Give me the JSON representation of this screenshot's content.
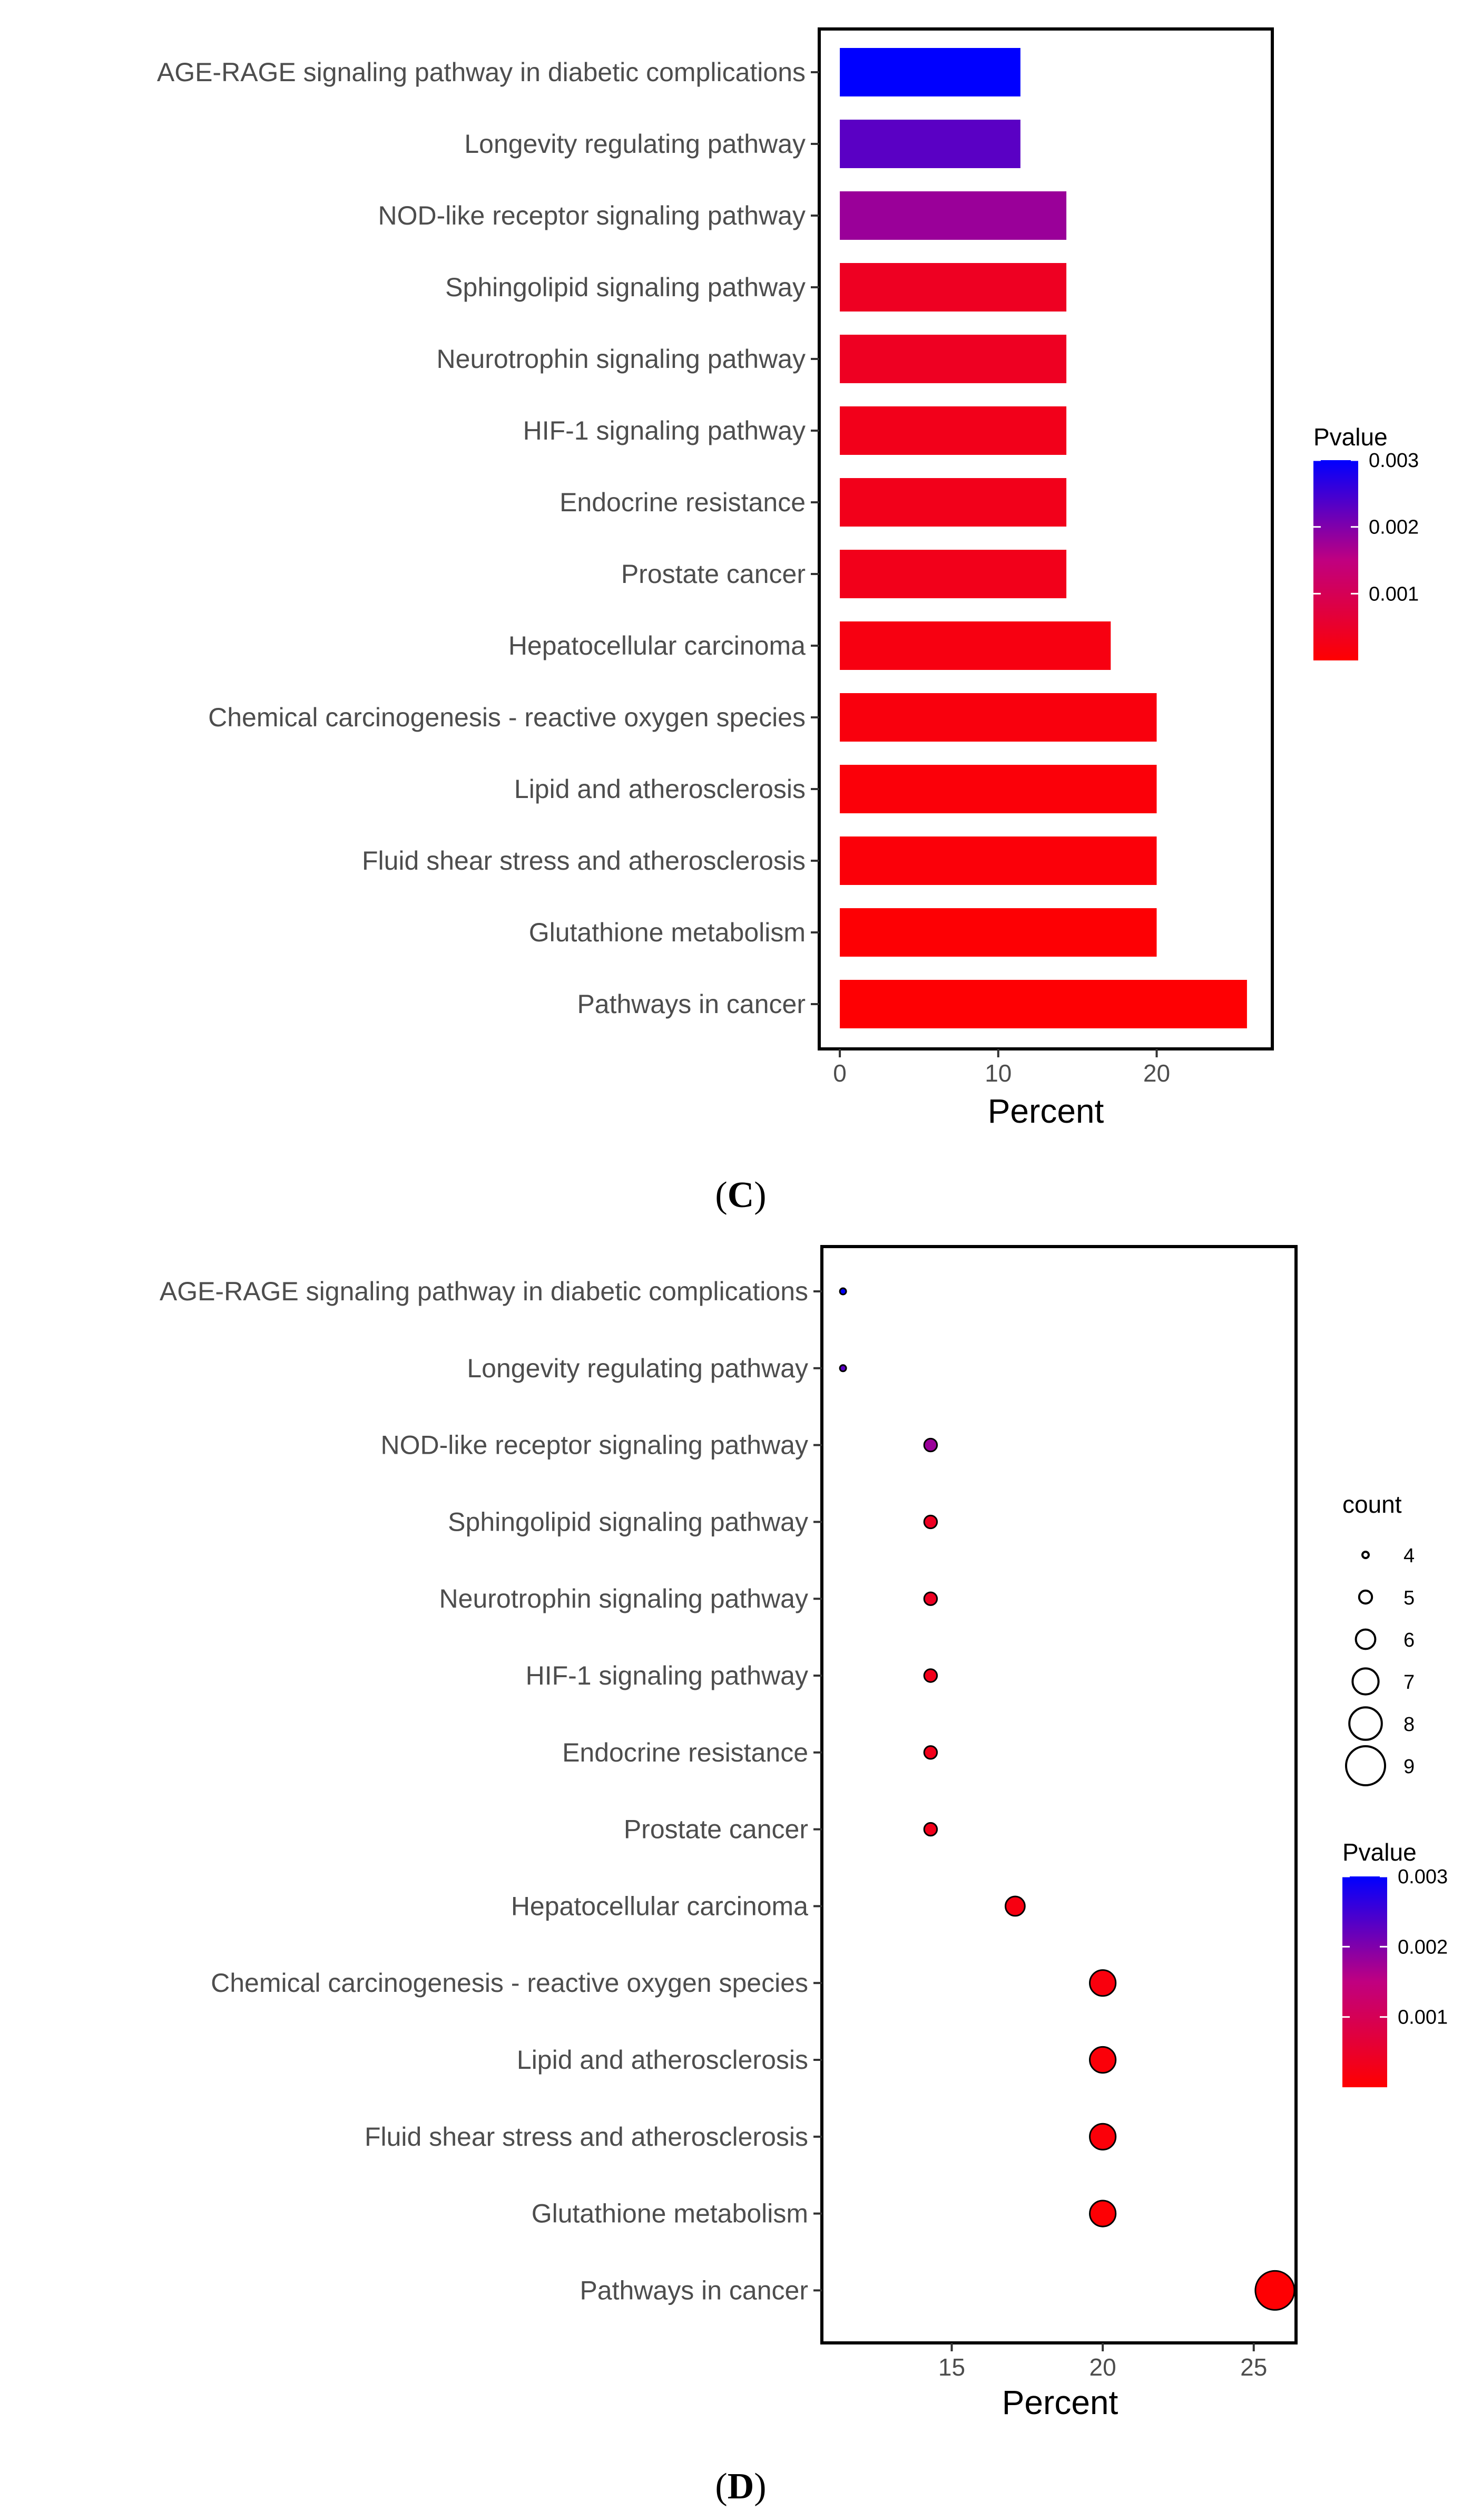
{
  "colors": {
    "low": "#ff0000",
    "high": "#0000ff",
    "mid": "#a020a0"
  },
  "chart_data": [
    {
      "type": "bar",
      "panel": "C",
      "orientation": "horizontal",
      "xlabel": "Percent",
      "xlim": [
        -1.3,
        27.3
      ],
      "xticks": [
        0,
        10,
        20
      ],
      "categories": [
        "AGE-RAGE signaling pathway in diabetic complications",
        "Longevity regulating pathway",
        "NOD-like receptor signaling pathway",
        "Sphingolipid signaling pathway",
        "Neurotrophin signaling pathway",
        "HIF-1 signaling pathway",
        "Endocrine resistance",
        "Prostate cancer",
        "Hepatocellular carcinoma",
        "Chemical carcinogenesis - reactive oxygen species",
        "Lipid and atherosclerosis",
        "Fluid shear stress and atherosclerosis",
        "Glutathione metabolism",
        "Pathways in cancer"
      ],
      "values": [
        11.4,
        11.4,
        14.3,
        14.3,
        14.3,
        14.3,
        14.3,
        14.3,
        17.1,
        20.0,
        20.0,
        20.0,
        20.0,
        25.7
      ],
      "pvalues": [
        0.003,
        0.0023,
        0.0018,
        0.0004,
        0.0004,
        0.0003,
        0.0003,
        0.0003,
        0.0002,
        0.00015,
        0.0001,
        0.0001,
        5e-05,
        3e-05
      ],
      "legend": {
        "title": "Pvalue",
        "range": [
          0,
          0.003
        ],
        "ticks": [
          "0.001",
          "0.002",
          "0.003"
        ],
        "tick_values": [
          0.001,
          0.002,
          0.003
        ],
        "position": "right"
      },
      "panel_label": {
        "open": "(",
        "letter": "C",
        "close": ")"
      }
    },
    {
      "type": "scatter",
      "panel": "D",
      "xlabel": "Percent",
      "xlim": [
        10.7,
        26.4
      ],
      "xticks": [
        15,
        20,
        25
      ],
      "categories": [
        "AGE-RAGE signaling pathway in diabetic complications",
        "Longevity regulating pathway",
        "NOD-like receptor signaling pathway",
        "Sphingolipid signaling pathway",
        "Neurotrophin signaling pathway",
        "HIF-1 signaling pathway",
        "Endocrine resistance",
        "Prostate cancer",
        "Hepatocellular carcinoma",
        "Chemical carcinogenesis - reactive oxygen species",
        "Lipid and atherosclerosis",
        "Fluid shear stress and atherosclerosis",
        "Glutathione metabolism",
        "Pathways in cancer"
      ],
      "values": [
        11.4,
        11.4,
        14.3,
        14.3,
        14.3,
        14.3,
        14.3,
        14.3,
        17.1,
        20.0,
        20.0,
        20.0,
        20.0,
        25.7
      ],
      "counts": [
        4,
        4,
        5,
        5,
        5,
        5,
        5,
        5,
        6,
        7,
        7,
        7,
        7,
        9
      ],
      "pvalues": [
        0.003,
        0.0023,
        0.0018,
        0.0004,
        0.0004,
        0.0003,
        0.0003,
        0.0003,
        0.0002,
        0.00015,
        0.0001,
        0.0001,
        5e-05,
        3e-05
      ],
      "size_legend": {
        "title": "count",
        "values": [
          4,
          5,
          6,
          7,
          8,
          9
        ],
        "labels": [
          "4",
          "5",
          "6",
          "7",
          "8",
          "9"
        ]
      },
      "legend": {
        "title": "Pvalue",
        "range": [
          0,
          0.003
        ],
        "ticks": [
          "0.001",
          "0.002",
          "0.003"
        ],
        "tick_values": [
          0.001,
          0.002,
          0.003
        ],
        "position": "right"
      },
      "panel_label": {
        "open": "(",
        "letter": "D",
        "close": ")"
      }
    }
  ]
}
